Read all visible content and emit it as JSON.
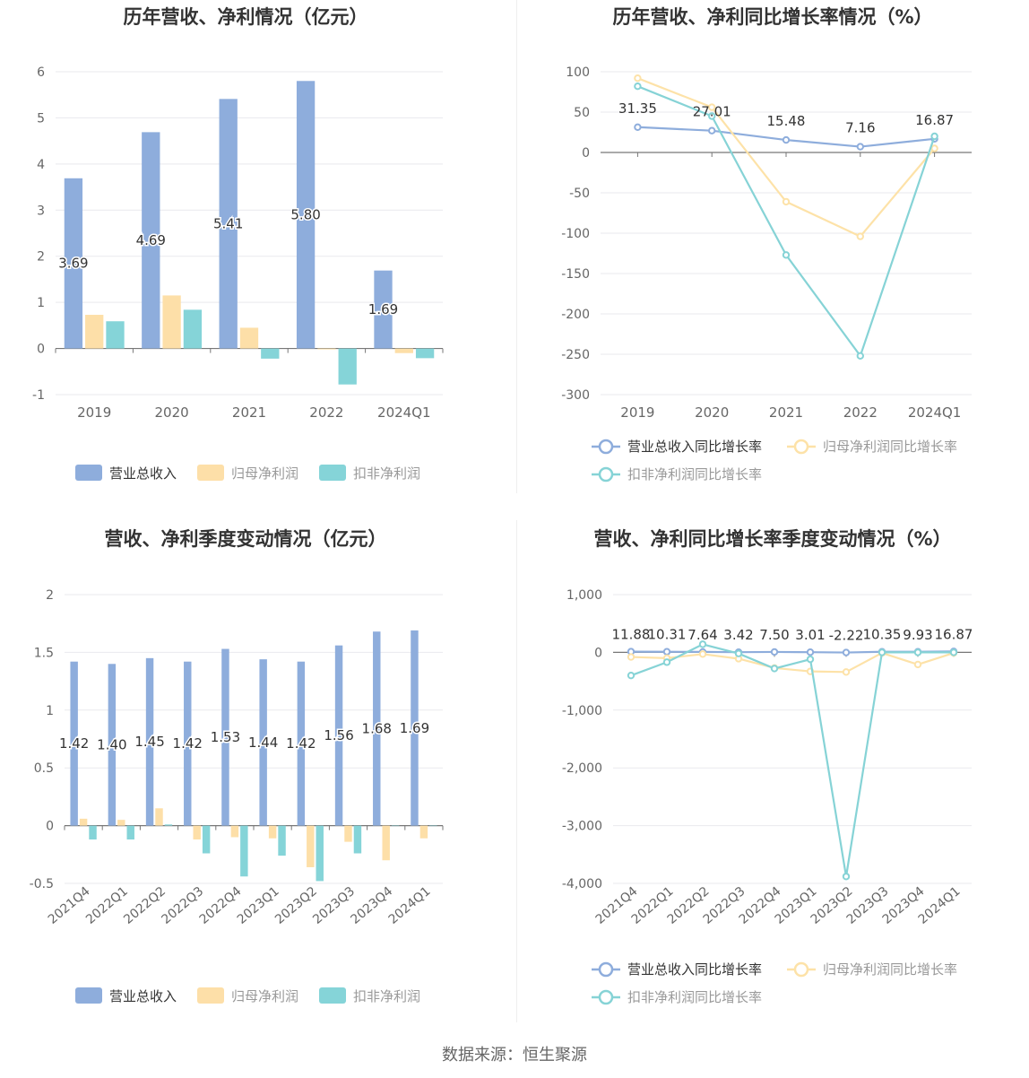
{
  "colors": {
    "revenue": "#8eaddc",
    "parent_profit": "#fddfa8",
    "deducted_profit": "#85d4d8",
    "revenue_line": "#8eaddc",
    "parent_line": "#fde2a8",
    "deducted_line": "#86d3d6"
  },
  "source_text": "数据来源：恒生聚源",
  "chart_data": [
    {
      "id": "annual-amount",
      "type": "bar",
      "title": "历年营收、净利情况（亿元）",
      "categories": [
        "2019",
        "2020",
        "2021",
        "2022",
        "2024Q1"
      ],
      "series": [
        {
          "name": "营业总收入",
          "values": [
            3.69,
            4.69,
            5.41,
            5.8,
            1.69
          ],
          "labels": [
            "3.69",
            "4.69",
            "5.41",
            "5.80",
            "1.69"
          ]
        },
        {
          "name": "归母净利润",
          "values": [
            0.73,
            1.15,
            0.45,
            -0.02,
            -0.1
          ]
        },
        {
          "name": "扣非净利润",
          "values": [
            0.59,
            0.84,
            -0.22,
            -0.78,
            -0.21
          ]
        }
      ],
      "ylim": [
        -1,
        6
      ],
      "yticks": [
        "-1",
        "0",
        "1",
        "2",
        "3",
        "4",
        "5",
        "6"
      ],
      "yticks_values": [
        -1,
        0,
        1,
        2,
        3,
        4,
        5,
        6
      ],
      "legend_position": "bottom",
      "grid": true
    },
    {
      "id": "annual-growth",
      "type": "line",
      "title": "历年营收、净利同比增长率情况（%）",
      "categories": [
        "2019",
        "2020",
        "2021",
        "2022",
        "2024Q1"
      ],
      "series": [
        {
          "name": "营业总收入同比增长率",
          "values": [
            31.35,
            27.01,
            15.48,
            7.16,
            16.87
          ],
          "labels": [
            "31.35",
            "27.01",
            "15.48",
            "7.16",
            "16.87"
          ]
        },
        {
          "name": "归母净利润同比增长率",
          "values": [
            92,
            56,
            -61,
            -104,
            5
          ]
        },
        {
          "name": "扣非净利润同比增长率",
          "values": [
            82,
            45,
            -127,
            -252,
            20
          ]
        }
      ],
      "ylim": [
        -300,
        100
      ],
      "yticks": [
        "-300",
        "-250",
        "-200",
        "-150",
        "-100",
        "-50",
        "0",
        "50",
        "100"
      ],
      "yticks_values": [
        -300,
        -250,
        -200,
        -150,
        -100,
        -50,
        0,
        50,
        100
      ],
      "legend_position": "bottom",
      "grid": true
    },
    {
      "id": "quarterly-amount",
      "type": "bar",
      "title": "营收、净利季度变动情况（亿元）",
      "categories": [
        "2021Q4",
        "2022Q1",
        "2022Q2",
        "2022Q3",
        "2022Q4",
        "2023Q1",
        "2023Q2",
        "2023Q3",
        "2023Q4",
        "2024Q1"
      ],
      "series": [
        {
          "name": "营业总收入",
          "values": [
            1.42,
            1.4,
            1.45,
            1.42,
            1.53,
            1.44,
            1.42,
            1.56,
            1.68,
            1.69
          ],
          "labels": [
            "1.42",
            "1.40",
            "1.45",
            "1.42",
            "1.53",
            "1.44",
            "1.42",
            "1.56",
            "1.68",
            "1.69"
          ]
        },
        {
          "name": "归母净利润",
          "values": [
            0.06,
            0.05,
            0.15,
            -0.12,
            -0.1,
            -0.11,
            -0.36,
            -0.14,
            -0.3,
            -0.11
          ]
        },
        {
          "name": "扣非净利润",
          "values": [
            -0.12,
            -0.12,
            0.01,
            -0.24,
            -0.44,
            -0.26,
            -0.48,
            -0.24,
            0,
            0
          ]
        }
      ],
      "ylim": [
        -0.5,
        2
      ],
      "yticks": [
        "-0.5",
        "0",
        "0.5",
        "1",
        "1.5",
        "2"
      ],
      "yticks_values": [
        -0.5,
        0,
        0.5,
        1,
        1.5,
        2
      ],
      "legend_position": "bottom",
      "grid": true
    },
    {
      "id": "quarterly-growth",
      "type": "line",
      "title": "营收、净利同比增长率季度变动情况（%）",
      "categories": [
        "2021Q4",
        "2022Q1",
        "2022Q2",
        "2022Q3",
        "2022Q4",
        "2023Q1",
        "2023Q2",
        "2023Q3",
        "2023Q4",
        "2024Q1"
      ],
      "series": [
        {
          "name": "营业总收入同比增长率",
          "values": [
            11.88,
            10.31,
            7.64,
            3.42,
            7.5,
            3.01,
            -2.22,
            10.35,
            9.93,
            16.87
          ],
          "labels": [
            "11.88",
            "10.31",
            "7.64",
            "3.42",
            "7.50",
            "3.01",
            "-2.22",
            "10.35",
            "9.93",
            "16.87"
          ]
        },
        {
          "name": "归母净利润同比增长率",
          "values": [
            -80,
            -100,
            -30,
            -110,
            -270,
            -330,
            -340,
            -10,
            -210,
            -10
          ]
        },
        {
          "name": "扣非净利润同比增长率",
          "values": [
            -400,
            -170,
            140,
            -20,
            -280,
            -120,
            -3880,
            0,
            0,
            0
          ]
        }
      ],
      "ylim": [
        -4000,
        1000
      ],
      "yticks": [
        "-4,000",
        "-3,000",
        "-2,000",
        "-1,000",
        "0",
        "1,000"
      ],
      "yticks_values": [
        -4000,
        -3000,
        -2000,
        -1000,
        0,
        1000
      ],
      "legend_position": "bottom",
      "grid": true
    }
  ]
}
